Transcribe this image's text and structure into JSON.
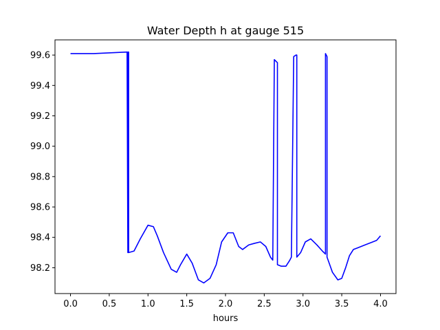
{
  "chart_data": {
    "type": "line",
    "title": "Water Depth h at gauge 515",
    "xlabel": "hours",
    "ylabel": "",
    "xlim": [
      -0.2,
      4.2
    ],
    "ylim": [
      98.03,
      99.7
    ],
    "xticks": [
      0.0,
      0.5,
      1.0,
      1.5,
      2.0,
      2.5,
      3.0,
      3.5,
      4.0
    ],
    "xtick_labels": [
      "0.0",
      "0.5",
      "1.0",
      "1.5",
      "2.0",
      "2.5",
      "3.0",
      "3.5",
      "4.0"
    ],
    "yticks": [
      98.2,
      98.4,
      98.6,
      98.8,
      99.0,
      99.2,
      99.4,
      99.6
    ],
    "ytick_labels": [
      "98.2",
      "98.4",
      "98.6",
      "98.8",
      "99.0",
      "99.2",
      "99.4",
      "99.6"
    ],
    "grid": false,
    "series": [
      {
        "color": "#0000ff",
        "x": [
          0.0,
          0.3,
          0.73,
          0.74,
          0.74,
          0.75,
          0.75,
          0.82,
          0.9,
          1.0,
          1.07,
          1.12,
          1.2,
          1.3,
          1.37,
          1.42,
          1.5,
          1.57,
          1.65,
          1.72,
          1.8,
          1.88,
          1.95,
          2.03,
          2.1,
          2.17,
          2.22,
          2.3,
          2.37,
          2.45,
          2.52,
          2.58,
          2.61,
          2.63,
          2.67,
          2.67,
          2.72,
          2.78,
          2.83,
          2.85,
          2.88,
          2.91,
          2.92,
          2.92,
          2.97,
          3.03,
          3.1,
          3.18,
          3.25,
          3.29,
          3.29,
          3.31,
          3.31,
          3.38,
          3.45,
          3.5,
          3.55,
          3.6,
          3.65,
          3.7,
          3.8,
          3.9,
          3.95,
          4.0
        ],
        "y": [
          99.61,
          99.61,
          99.62,
          98.3,
          99.62,
          99.62,
          98.3,
          98.31,
          98.39,
          98.48,
          98.47,
          98.41,
          98.3,
          98.19,
          98.17,
          98.22,
          98.29,
          98.23,
          98.12,
          98.1,
          98.13,
          98.22,
          98.37,
          98.43,
          98.43,
          98.34,
          98.32,
          98.35,
          98.36,
          98.37,
          98.34,
          98.27,
          98.25,
          99.57,
          99.55,
          98.22,
          98.21,
          98.21,
          98.25,
          98.27,
          99.59,
          99.6,
          99.6,
          98.27,
          98.3,
          98.37,
          98.39,
          98.35,
          98.31,
          98.29,
          99.61,
          99.59,
          98.27,
          98.17,
          98.12,
          98.13,
          98.2,
          98.28,
          98.32,
          98.33,
          98.35,
          98.37,
          98.38,
          98.41
        ]
      }
    ]
  }
}
